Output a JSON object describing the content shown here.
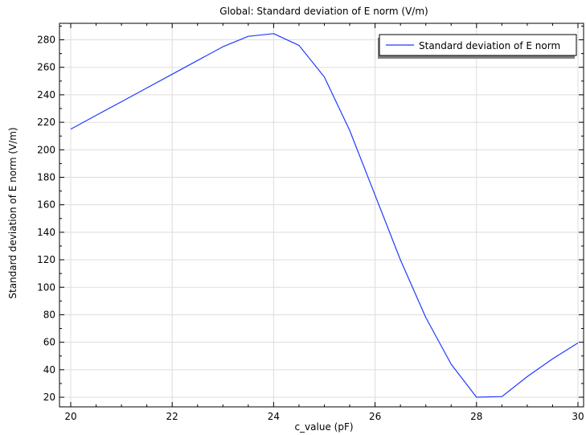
{
  "chart_data": {
    "type": "line",
    "title": "Global: Standard deviation of E norm (V/m)",
    "xlabel": "c_value (pF)",
    "ylabel": "Standard deviation of E norm (V/m)",
    "xlim": [
      20,
      30
    ],
    "ylim": [
      13,
      292
    ],
    "x_ticks": [
      20,
      22,
      24,
      26,
      28,
      30
    ],
    "y_ticks": [
      20,
      40,
      60,
      80,
      100,
      120,
      140,
      160,
      180,
      200,
      220,
      240,
      260,
      280
    ],
    "grid": true,
    "legend": {
      "position": "top-right"
    },
    "series": [
      {
        "name": "Standard deviation of E norm",
        "color": "#1f3bff",
        "x": [
          20,
          20.5,
          21,
          21.5,
          22,
          22.5,
          23,
          23.5,
          24,
          24.5,
          25,
          25.5,
          26,
          26.5,
          27,
          27.5,
          28,
          28.5,
          29,
          29.5,
          30
        ],
        "y": [
          215,
          225,
          235,
          245,
          255,
          265,
          275,
          282.5,
          284.5,
          276,
          253,
          214,
          167,
          120,
          78,
          44,
          20,
          20.5,
          35,
          48,
          59.5
        ]
      }
    ]
  }
}
